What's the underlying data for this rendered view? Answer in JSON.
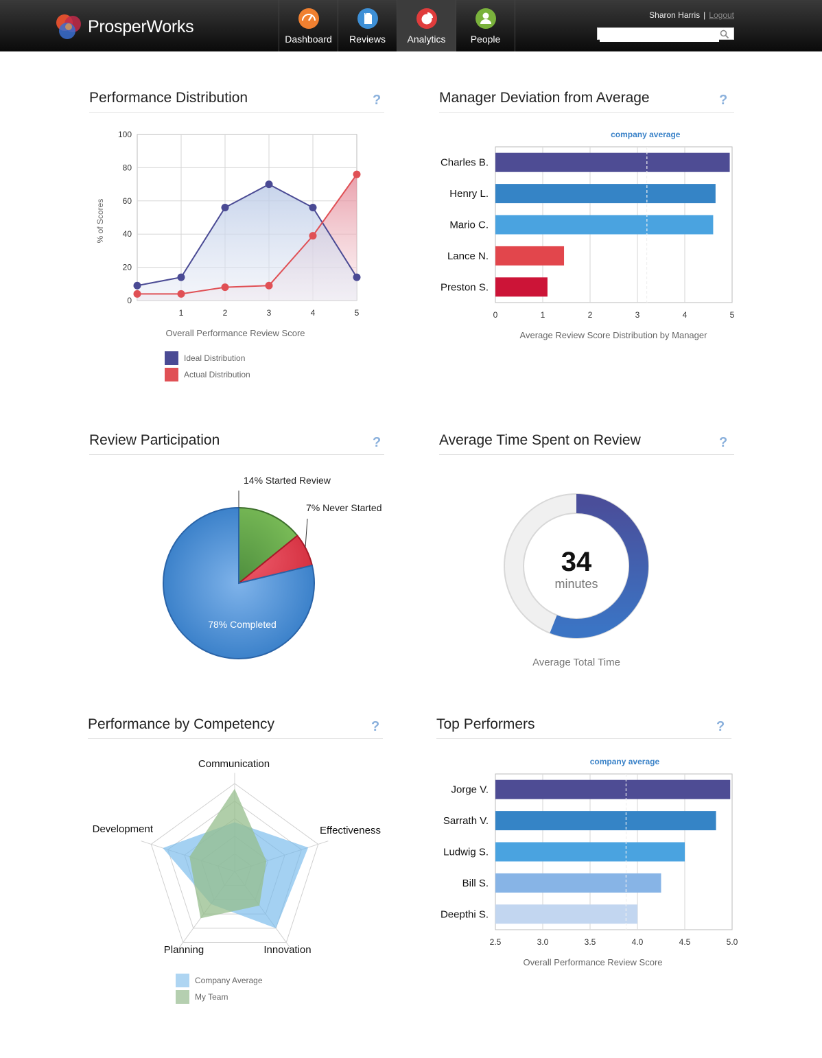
{
  "header": {
    "brand": "ProsperWorks",
    "nav": [
      {
        "label": "Dashboard",
        "icon": "speedometer-icon",
        "color": "#f08030"
      },
      {
        "label": "Reviews",
        "icon": "document-icon",
        "color": "#3d8fd6"
      },
      {
        "label": "Analytics",
        "icon": "pie-chart-icon",
        "color": "#e03c3c",
        "active": true
      },
      {
        "label": "People",
        "icon": "person-icon",
        "color": "#7ab23c"
      }
    ],
    "user_name": "Sharon Harris",
    "separator": "|",
    "logout_label": "Logout",
    "search": {
      "value": "",
      "placeholder": ""
    }
  },
  "help_label": "?",
  "panels": {
    "performance_distribution": {
      "title": "Performance Distribution"
    },
    "manager_deviation": {
      "title": "Manager Deviation from Average"
    },
    "review_participation": {
      "title": "Review Participation"
    },
    "average_time": {
      "title": "Average Time Spent on Review"
    },
    "competency": {
      "title": "Performance by Competency"
    },
    "top_performers": {
      "title": "Top Performers"
    }
  },
  "chart_data": [
    {
      "id": "performance_distribution",
      "type": "line",
      "xlabel": "Overall Performance Review Score",
      "ylabel": "% of Scores",
      "xlim": [
        0,
        5
      ],
      "ylim": [
        0,
        100
      ],
      "x_ticks": [
        "1",
        "2",
        "3",
        "4",
        "5"
      ],
      "y_ticks": [
        "0",
        "20",
        "40",
        "60",
        "80",
        "100"
      ],
      "x": [
        0,
        1,
        2,
        3,
        4,
        5
      ],
      "series": [
        {
          "name": "Ideal Distribution",
          "color": "#4a4a94",
          "values": [
            9,
            14,
            56,
            70,
            56,
            14
          ]
        },
        {
          "name": "Actual Distribution",
          "color": "#e05055",
          "values": [
            4,
            4,
            8,
            9,
            39,
            76
          ]
        }
      ],
      "grid": true,
      "legend": "bottom-left"
    },
    {
      "id": "manager_deviation",
      "type": "bar",
      "orientation": "horizontal",
      "xlabel": "Average Review Score Distribution by Manager",
      "xlim": [
        0,
        5
      ],
      "x_ticks": [
        "0",
        "1",
        "2",
        "3",
        "4",
        "5"
      ],
      "categories": [
        "Charles B.",
        "Henry L.",
        "Mario C.",
        "Lance N.",
        "Preston S."
      ],
      "values": [
        4.95,
        4.65,
        4.6,
        1.45,
        1.1
      ],
      "colors": [
        "#4e4c94",
        "#3584c6",
        "#4aa3e0",
        "#e2464c",
        "#cc1437"
      ],
      "reference_line": {
        "label": "company average",
        "value": 3.2
      },
      "grid": true
    },
    {
      "id": "review_participation",
      "type": "pie",
      "slices": [
        {
          "label": "78% Completed",
          "value": 78,
          "color": "#3a86d0"
        },
        {
          "label": "14% Started Review",
          "value": 14,
          "color": "#5d9e48"
        },
        {
          "label": "7% Never Started",
          "value": 7,
          "color": "#e03848"
        }
      ]
    },
    {
      "id": "average_time",
      "type": "donut",
      "value": "34",
      "unit": "minutes",
      "caption": "Average Total Time",
      "fill_fraction": 0.56,
      "colors": {
        "fill": "#4a5aa8",
        "track": "#f0f0f0"
      }
    },
    {
      "id": "competency",
      "type": "radar",
      "axes": [
        "Communication",
        "Effectiveness",
        "Innovation",
        "Planning",
        "Development"
      ],
      "rmax": 5,
      "series": [
        {
          "name": "Company Average",
          "color": "#8ec5ec",
          "values": [
            2.8,
            4.4,
            4.0,
            2.3,
            4.3
          ]
        },
        {
          "name": "My Team",
          "color": "#a9c9a2",
          "values": [
            4.7,
            1.9,
            2.4,
            3.3,
            2.7
          ]
        }
      ],
      "legend": "bottom-left"
    },
    {
      "id": "top_performers",
      "type": "bar",
      "orientation": "horizontal",
      "xlabel": "Overall Performance Review Score",
      "xlim": [
        2.5,
        5.0
      ],
      "x_ticks": [
        "2.5",
        "3.0",
        "3.5",
        "4.0",
        "4.5",
        "5.0"
      ],
      "categories": [
        "Jorge V.",
        "Sarrath V.",
        "Ludwig S.",
        "Bill S.",
        "Deepthi S."
      ],
      "values": [
        4.98,
        4.83,
        4.5,
        4.25,
        4.0
      ],
      "colors": [
        "#4e4c94",
        "#3584c6",
        "#4aa3e0",
        "#87b4e6",
        "#c2d6f0"
      ],
      "reference_line": {
        "label": "company average",
        "value": 3.88
      },
      "grid": true
    }
  ]
}
